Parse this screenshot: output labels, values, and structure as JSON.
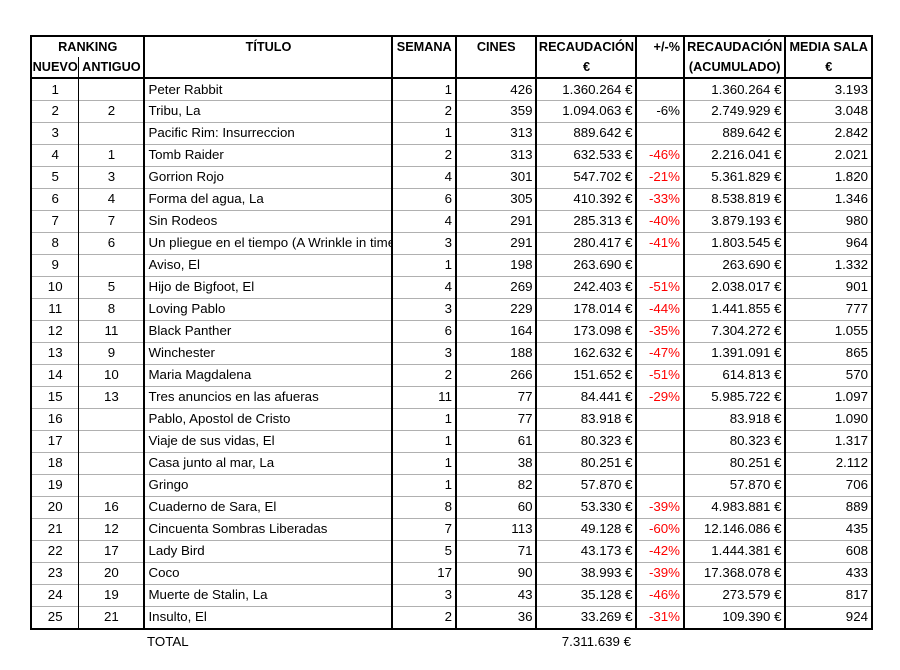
{
  "table": {
    "header": {
      "ranking": "RANKING",
      "nuevo": "NUEVO",
      "antiguo": "ANTIGUO",
      "titulo": "TÍTULO",
      "semana": "SEMANA",
      "cines": "CINES",
      "recaudacion_line1": "RECAUDACIÓN",
      "recaudacion_line2": "€",
      "pct": "+/-%",
      "acumulado_line1": "RECAUDACIÓN",
      "acumulado_line2": "(ACUMULADO)",
      "media_line1": "MEDIA SALA",
      "media_line2": "€"
    },
    "rows": [
      {
        "nuevo": "1",
        "antiguo": "",
        "titulo": "Peter Rabbit",
        "semana": "1",
        "cines": "426",
        "recaudacion": "1.360.264 €",
        "pct": "",
        "pct_red": false,
        "acumulado": "1.360.264 €",
        "media": "3.193"
      },
      {
        "nuevo": "2",
        "antiguo": "2",
        "titulo": "Tribu, La",
        "semana": "2",
        "cines": "359",
        "recaudacion": "1.094.063 €",
        "pct": "-6%",
        "pct_red": false,
        "acumulado": "2.749.929 €",
        "media": "3.048"
      },
      {
        "nuevo": "3",
        "antiguo": "",
        "titulo": "Pacific Rim: Insurreccion",
        "semana": "1",
        "cines": "313",
        "recaudacion": "889.642 €",
        "pct": "",
        "pct_red": false,
        "acumulado": "889.642 €",
        "media": "2.842"
      },
      {
        "nuevo": "4",
        "antiguo": "1",
        "titulo": "Tomb Raider",
        "semana": "2",
        "cines": "313",
        "recaudacion": "632.533 €",
        "pct": "-46%",
        "pct_red": true,
        "acumulado": "2.216.041 €",
        "media": "2.021"
      },
      {
        "nuevo": "5",
        "antiguo": "3",
        "titulo": "Gorrion Rojo",
        "semana": "4",
        "cines": "301",
        "recaudacion": "547.702 €",
        "pct": "-21%",
        "pct_red": true,
        "acumulado": "5.361.829 €",
        "media": "1.820"
      },
      {
        "nuevo": "6",
        "antiguo": "4",
        "titulo": "Forma del agua, La",
        "semana": "6",
        "cines": "305",
        "recaudacion": "410.392 €",
        "pct": "-33%",
        "pct_red": true,
        "acumulado": "8.538.819 €",
        "media": "1.346"
      },
      {
        "nuevo": "7",
        "antiguo": "7",
        "titulo": "Sin Rodeos",
        "semana": "4",
        "cines": "291",
        "recaudacion": "285.313 €",
        "pct": "-40%",
        "pct_red": true,
        "acumulado": "3.879.193 €",
        "media": "980"
      },
      {
        "nuevo": "8",
        "antiguo": "6",
        "titulo": "Un pliegue en el tiempo (A Wrinkle in time",
        "semana": "3",
        "cines": "291",
        "recaudacion": "280.417 €",
        "pct": "-41%",
        "pct_red": true,
        "acumulado": "1.803.545 €",
        "media": "964"
      },
      {
        "nuevo": "9",
        "antiguo": "",
        "titulo": "Aviso, El",
        "semana": "1",
        "cines": "198",
        "recaudacion": "263.690 €",
        "pct": "",
        "pct_red": false,
        "acumulado": "263.690 €",
        "media": "1.332"
      },
      {
        "nuevo": "10",
        "antiguo": "5",
        "titulo": "Hijo de Bigfoot, El",
        "semana": "4",
        "cines": "269",
        "recaudacion": "242.403 €",
        "pct": "-51%",
        "pct_red": true,
        "acumulado": "2.038.017 €",
        "media": "901"
      },
      {
        "nuevo": "11",
        "antiguo": "8",
        "titulo": "Loving Pablo",
        "semana": "3",
        "cines": "229",
        "recaudacion": "178.014 €",
        "pct": "-44%",
        "pct_red": true,
        "acumulado": "1.441.855 €",
        "media": "777"
      },
      {
        "nuevo": "12",
        "antiguo": "11",
        "titulo": "Black Panther",
        "semana": "6",
        "cines": "164",
        "recaudacion": "173.098 €",
        "pct": "-35%",
        "pct_red": true,
        "acumulado": "7.304.272 €",
        "media": "1.055"
      },
      {
        "nuevo": "13",
        "antiguo": "9",
        "titulo": "Winchester",
        "semana": "3",
        "cines": "188",
        "recaudacion": "162.632 €",
        "pct": "-47%",
        "pct_red": true,
        "acumulado": "1.391.091 €",
        "media": "865"
      },
      {
        "nuevo": "14",
        "antiguo": "10",
        "titulo": "Maria Magdalena",
        "semana": "2",
        "cines": "266",
        "recaudacion": "151.652 €",
        "pct": "-51%",
        "pct_red": true,
        "acumulado": "614.813 €",
        "media": "570"
      },
      {
        "nuevo": "15",
        "antiguo": "13",
        "titulo": "Tres anuncios en las afueras",
        "semana": "11",
        "cines": "77",
        "recaudacion": "84.441 €",
        "pct": "-29%",
        "pct_red": true,
        "acumulado": "5.985.722 €",
        "media": "1.097"
      },
      {
        "nuevo": "16",
        "antiguo": "",
        "titulo": "Pablo, Apostol de Cristo",
        "semana": "1",
        "cines": "77",
        "recaudacion": "83.918 €",
        "pct": "",
        "pct_red": false,
        "acumulado": "83.918 €",
        "media": "1.090"
      },
      {
        "nuevo": "17",
        "antiguo": "",
        "titulo": "Viaje de sus vidas, El",
        "semana": "1",
        "cines": "61",
        "recaudacion": "80.323 €",
        "pct": "",
        "pct_red": false,
        "acumulado": "80.323 €",
        "media": "1.317"
      },
      {
        "nuevo": "18",
        "antiguo": "",
        "titulo": "Casa junto al mar, La",
        "semana": "1",
        "cines": "38",
        "recaudacion": "80.251 €",
        "pct": "",
        "pct_red": false,
        "acumulado": "80.251 €",
        "media": "2.112"
      },
      {
        "nuevo": "19",
        "antiguo": "",
        "titulo": "Gringo",
        "semana": "1",
        "cines": "82",
        "recaudacion": "57.870 €",
        "pct": "",
        "pct_red": false,
        "acumulado": "57.870 €",
        "media": "706"
      },
      {
        "nuevo": "20",
        "antiguo": "16",
        "titulo": "Cuaderno de Sara, El",
        "semana": "8",
        "cines": "60",
        "recaudacion": "53.330 €",
        "pct": "-39%",
        "pct_red": true,
        "acumulado": "4.983.881 €",
        "media": "889"
      },
      {
        "nuevo": "21",
        "antiguo": "12",
        "titulo": "Cincuenta Sombras Liberadas",
        "semana": "7",
        "cines": "113",
        "recaudacion": "49.128 €",
        "pct": "-60%",
        "pct_red": true,
        "acumulado": "12.146.086 €",
        "media": "435"
      },
      {
        "nuevo": "22",
        "antiguo": "17",
        "titulo": "Lady Bird",
        "semana": "5",
        "cines": "71",
        "recaudacion": "43.173 €",
        "pct": "-42%",
        "pct_red": true,
        "acumulado": "1.444.381 €",
        "media": "608"
      },
      {
        "nuevo": "23",
        "antiguo": "20",
        "titulo": "Coco",
        "semana": "17",
        "cines": "90",
        "recaudacion": "38.993 €",
        "pct": "-39%",
        "pct_red": true,
        "acumulado": "17.368.078 €",
        "media": "433"
      },
      {
        "nuevo": "24",
        "antiguo": "19",
        "titulo": "Muerte de Stalin, La",
        "semana": "3",
        "cines": "43",
        "recaudacion": "35.128 €",
        "pct": "-46%",
        "pct_red": true,
        "acumulado": "273.579 €",
        "media": "817"
      },
      {
        "nuevo": "25",
        "antiguo": "21",
        "titulo": "Insulto, El",
        "semana": "2",
        "cines": "36",
        "recaudacion": "33.269 €",
        "pct": "-31%",
        "pct_red": true,
        "acumulado": "109.390 €",
        "media": "924"
      }
    ],
    "total": {
      "label": "TOTAL",
      "value": "7.311.639 €"
    }
  },
  "colors": {
    "text": "#000000",
    "negative_pct": "#ff0000",
    "grid_line": "#b0b0b0",
    "border": "#000000",
    "background": "#ffffff"
  }
}
